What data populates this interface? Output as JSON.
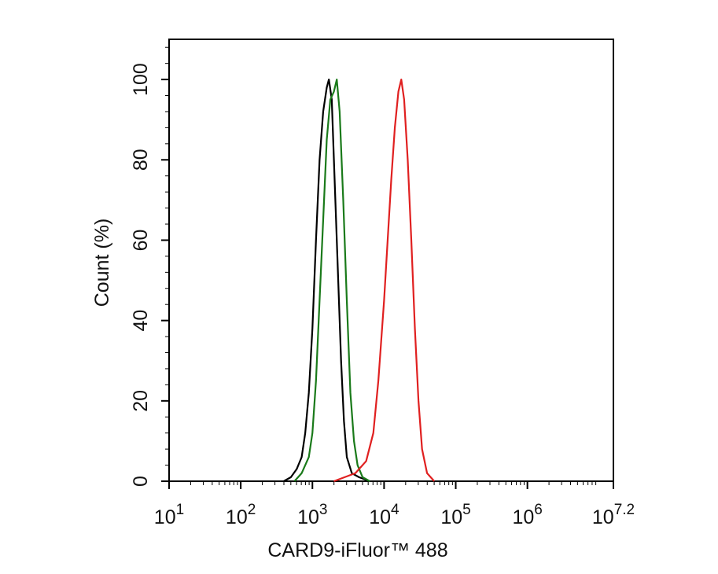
{
  "chart_data": {
    "type": "histogram-overlay",
    "x_label": "CARD9-iFluor™ 488",
    "y_label": "Count  (%)",
    "xscale": "log",
    "xlim": [
      10,
      15848931.92
    ],
    "xticks": [
      {
        "value": 10,
        "label": "10",
        "exponent": "1"
      },
      {
        "value": 100,
        "label": "10",
        "exponent": "2"
      },
      {
        "value": 1000,
        "label": "10",
        "exponent": "3"
      },
      {
        "value": 10000,
        "label": "10",
        "exponent": "4"
      },
      {
        "value": 100000,
        "label": "10",
        "exponent": "5"
      },
      {
        "value": 1000000,
        "label": "10",
        "exponent": "6"
      },
      {
        "value": 15848931.92,
        "label": "10",
        "exponent": "7.2"
      }
    ],
    "ylim": [
      0,
      110
    ],
    "yticks": [
      0,
      20,
      40,
      60,
      80,
      100
    ],
    "series": [
      {
        "color": "#000000",
        "x": [
          398,
          501,
          603,
          708,
          794,
          891,
          1000,
          1122,
          1259,
          1413,
          1585,
          1698,
          1862,
          1995,
          2239,
          2512,
          2754,
          3020,
          3548,
          4467,
          6310
        ],
        "values": [
          0,
          1,
          3,
          6,
          12,
          22,
          38,
          60,
          80,
          92,
          98,
          100,
          95,
          80,
          55,
          30,
          15,
          6,
          2,
          1,
          0
        ]
      },
      {
        "color": "#1a7a1a",
        "x": [
          562,
          708,
          891,
          1000,
          1122,
          1259,
          1413,
          1585,
          1778,
          1995,
          2188,
          2399,
          2692,
          3020,
          3388,
          3802,
          4266,
          5012,
          6310
        ],
        "values": [
          0,
          2,
          6,
          12,
          25,
          45,
          65,
          85,
          95,
          97,
          100,
          92,
          70,
          45,
          22,
          10,
          4,
          1,
          0
        ]
      },
      {
        "color": "#e02020",
        "x": [
          1995,
          3981,
          5623,
          7079,
          8318,
          10000,
          11220,
          12589,
          14125,
          15849,
          17378,
          19055,
          21380,
          23988,
          26915,
          30200,
          33884,
          39811,
          50119
        ],
        "values": [
          0,
          2,
          5,
          12,
          25,
          45,
          60,
          75,
          88,
          97,
          100,
          95,
          80,
          60,
          38,
          20,
          8,
          2,
          0
        ]
      }
    ]
  }
}
